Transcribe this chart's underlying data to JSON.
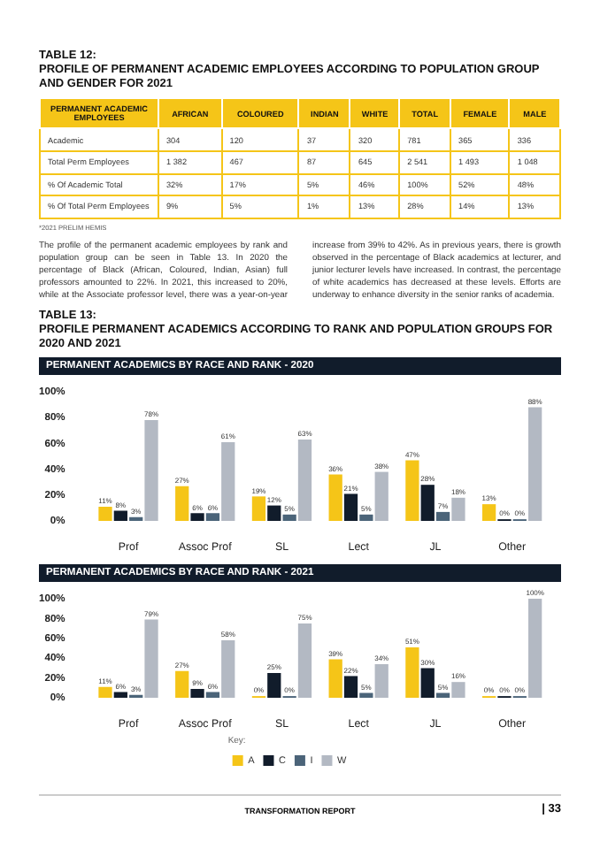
{
  "chart_data": [
    {
      "type": "other",
      "title": "TABLE 12:\nPROFILE OF PERMANENT ACADEMIC EMPLOYEES ACCORDING TO POPULATION GROUP AND GENDER FOR 2021",
      "categories": [
        "PERMANENT ACADEMIC EMPLOYEES",
        "AFRICAN",
        "COLOURED",
        "INDIAN",
        "WHITE",
        "TOTAL",
        "FEMALE",
        "MALE"
      ],
      "y_categories": [
        "Academic",
        "Total Perm Employees",
        "% Of Academic Total",
        "% Of Total Perm Employees"
      ],
      "cell_labels": [
        [
          "304",
          "120",
          "37",
          "320",
          "781",
          "365",
          "336"
        ],
        [
          "1 382",
          "467",
          "87",
          "645",
          "2 541",
          "1 493",
          "1 048"
        ],
        [
          "32%",
          "17%",
          "5%",
          "46%",
          "100%",
          "52%",
          "48%"
        ],
        [
          "9%",
          "5%",
          "1%",
          "13%",
          "28%",
          "14%",
          "13%"
        ]
      ],
      "annotations": [
        "*2021 PRELIM HEMIS",
        "The profile of the permanent academic employees by rank and population group can be seen in Table 13. In 2020 the percentage of Black (African, Coloured, Indian, Asian) full professors amounted to 22%. In 2021, this increased to 20%, while at the Associate professor level, there was a year-on-year increase from 39% to 42%. As in previous years, there is growth observed in the percentage of Black academics at lecturer, and junior lecturer levels have increased. In contrast, the percentage of white academics has decreased at these levels. Efforts are underway to enhance diversity in the senior ranks of academia."
      ]
    },
    {
      "type": "bar",
      "title": "TABLE 13:\nPROFILE PERMANENT ACADEMICS ACCORDING TO RANK AND POPULATION GROUPS FOR 2020 AND 2021",
      "subtitle": "PERMANENT ACADEMICS BY RACE AND RANK - 2020",
      "categories": [
        "Prof",
        "Assoc Prof",
        "SL",
        "Lect",
        "JL",
        "Other"
      ],
      "series": [
        {
          "color": "#f5c518",
          "values": [
            11,
            27,
            19,
            36,
            47,
            13
          ],
          "value_labels": [
            "11%",
            "27%",
            "19%",
            "36%",
            "47%",
            "13%"
          ]
        },
        {
          "color": "#111c2b",
          "values": [
            8,
            6,
            12,
            21,
            28,
            0
          ],
          "value_labels": [
            "8%",
            "6%",
            "12%",
            "21%",
            "28%",
            "0%"
          ]
        },
        {
          "color": "#4b6479",
          "values": [
            3,
            6,
            5,
            5,
            7,
            0
          ],
          "value_labels": [
            "3%",
            "6%",
            "5%",
            "5%",
            "7%",
            "0%"
          ]
        },
        {
          "color": "#b3b9c3",
          "values": [
            78,
            61,
            63,
            38,
            18,
            88
          ],
          "value_labels": [
            "78%",
            "61%",
            "63%",
            "38%",
            "18%",
            "88%"
          ]
        }
      ],
      "ylim": [
        0,
        100
      ],
      "yticks": [
        {
          "value": 0,
          "label": "0%"
        },
        {
          "value": 20,
          "label": "20%"
        },
        {
          "value": 40,
          "label": "40%"
        },
        {
          "value": 60,
          "label": "60%"
        },
        {
          "value": 80,
          "label": "80%"
        },
        {
          "value": 100,
          "label": "100%"
        }
      ],
      "grid": false,
      "legend": false
    },
    {
      "type": "bar",
      "subtitle": "PERMANENT ACADEMICS BY RACE AND RANK - 2021",
      "categories": [
        "Prof",
        "Assoc Prof",
        "SL",
        "Lect",
        "JL",
        "Other"
      ],
      "series": [
        {
          "name": "A",
          "color": "#f5c518",
          "values": [
            11,
            27,
            0,
            39,
            51,
            0
          ],
          "value_labels": [
            "11%",
            "27%",
            "0%",
            "39%",
            "51%",
            "0%"
          ]
        },
        {
          "name": "C",
          "color": "#111c2b",
          "values": [
            6,
            9,
            25,
            22,
            30,
            0
          ],
          "value_labels": [
            "6%",
            "9%",
            "25%",
            "22%",
            "30%",
            "0%"
          ]
        },
        {
          "name": "I",
          "color": "#4b6479",
          "values": [
            3,
            6,
            0,
            5,
            5,
            0
          ],
          "value_labels": [
            "3%",
            "6%",
            "0%",
            "5%",
            "5%",
            "0%"
          ]
        },
        {
          "name": "W",
          "color": "#b3b9c3",
          "values": [
            79,
            58,
            75,
            34,
            16,
            100
          ],
          "value_labels": [
            "79%",
            "58%",
            "75%",
            "34%",
            "16%",
            "100%"
          ]
        }
      ],
      "ylim": [
        0,
        100
      ],
      "yticks": [
        {
          "value": 0,
          "label": "0%"
        },
        {
          "value": 20,
          "label": "20%"
        },
        {
          "value": 40,
          "label": "40%"
        },
        {
          "value": 60,
          "label": "60%"
        },
        {
          "value": 80,
          "label": "80%"
        },
        {
          "value": 100,
          "label": "100%"
        }
      ],
      "grid": false,
      "legend": "bottom",
      "legend_title": "Key:",
      "annotations": [
        "TRANSFORMATION REPORT",
        "| 33"
      ]
    }
  ]
}
